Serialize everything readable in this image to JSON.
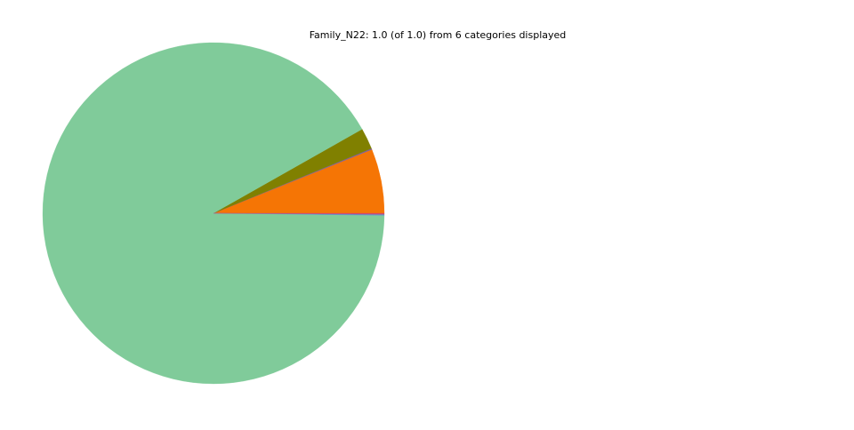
{
  "chart_data": {
    "type": "pie",
    "title": "Family_N22: 1.0 (of 1.0) from 6 categories displayed",
    "categories": [
      null,
      null,
      null,
      null,
      null,
      null
    ],
    "values": [
      0.061,
      0.001,
      0.02,
      0.916,
      0.001,
      0.001
    ],
    "colors": [
      "#f57505",
      "#7b5ea7",
      "#808000",
      "#80cb9a",
      "#5a8fd0",
      "#d04a6a"
    ]
  }
}
